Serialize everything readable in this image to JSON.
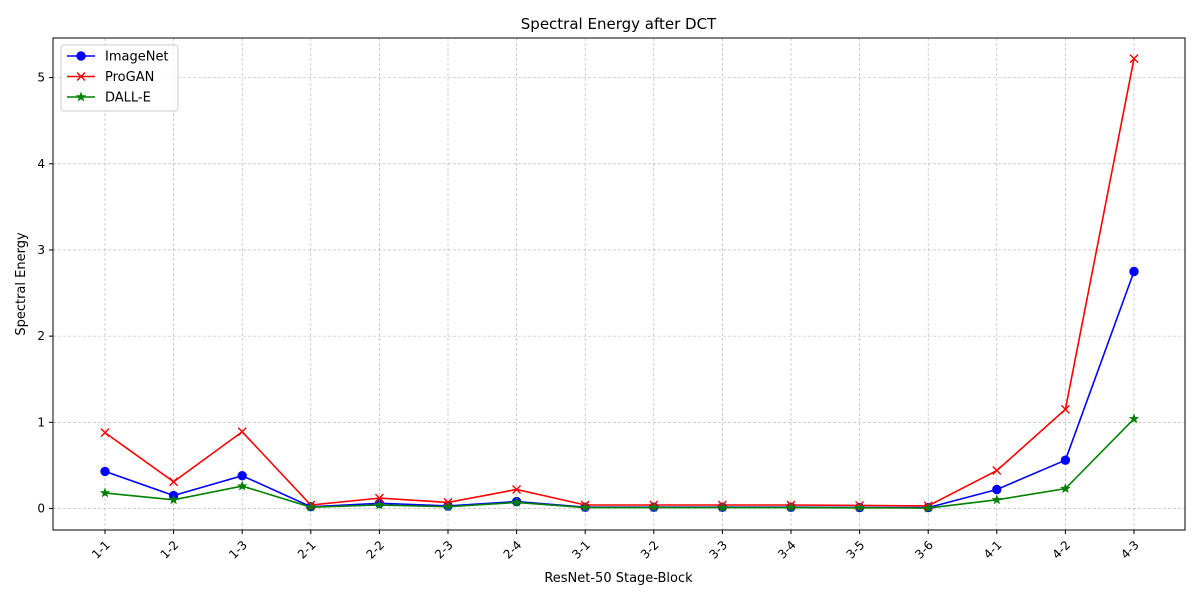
{
  "chart_data": {
    "type": "line",
    "title": "Spectral Energy after DCT",
    "xlabel": "ResNet-50 Stage-Block",
    "ylabel": "Spectral Energy",
    "categories": [
      "1-1",
      "1-2",
      "1-3",
      "2-1",
      "2-2",
      "2-3",
      "2-4",
      "3-1",
      "3-2",
      "3-3",
      "3-4",
      "3-5",
      "3-6",
      "4-1",
      "4-2",
      "4-3"
    ],
    "ylim": [
      -0.25,
      5.46
    ],
    "yticks": [
      0,
      1,
      2,
      3,
      4,
      5
    ],
    "grid": true,
    "legend_position": "top-left",
    "series": [
      {
        "name": "ImageNet",
        "color": "#0000ff",
        "marker": "circle",
        "values": [
          0.43,
          0.15,
          0.38,
          0.02,
          0.06,
          0.03,
          0.08,
          0.015,
          0.015,
          0.015,
          0.015,
          0.01,
          0.01,
          0.22,
          0.56,
          2.75
        ]
      },
      {
        "name": "ProGAN",
        "color": "#ff0000",
        "marker": "x",
        "values": [
          0.88,
          0.31,
          0.89,
          0.04,
          0.12,
          0.07,
          0.22,
          0.04,
          0.04,
          0.04,
          0.04,
          0.035,
          0.03,
          0.44,
          1.15,
          5.22
        ]
      },
      {
        "name": "DALL-E",
        "color": "#008000",
        "marker": "star",
        "values": [
          0.18,
          0.1,
          0.26,
          0.015,
          0.04,
          0.02,
          0.07,
          0.01,
          0.01,
          0.01,
          0.01,
          0.008,
          0.005,
          0.1,
          0.23,
          1.04
        ]
      }
    ]
  }
}
